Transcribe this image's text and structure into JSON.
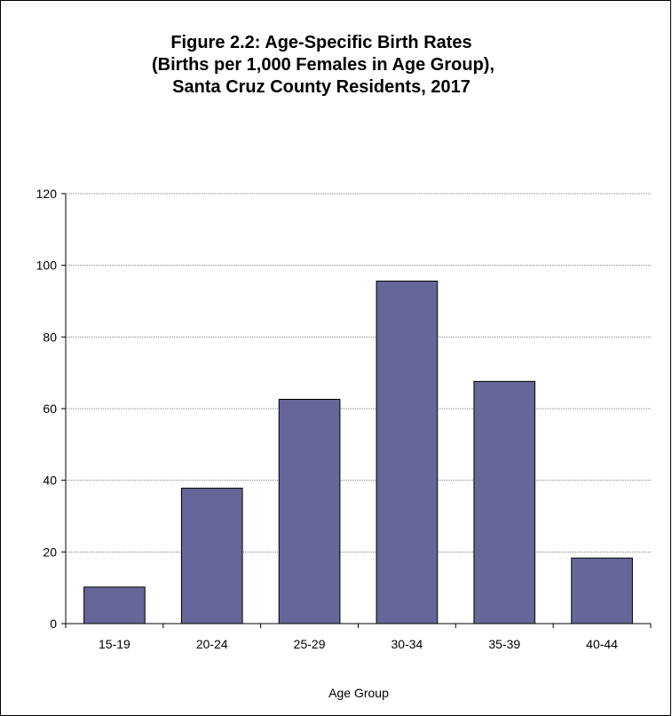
{
  "chart_data": {
    "type": "bar",
    "title_lines": [
      "Figure 2.2:  Age-Specific Birth Rates",
      "(Births per 1,000 Females in Age Group),",
      "Santa Cruz County Residents, 2017"
    ],
    "categories": [
      "15-19",
      "20-24",
      "25-29",
      "30-34",
      "35-39",
      "40-44"
    ],
    "values": [
      10.2,
      37.8,
      62.6,
      95.6,
      67.6,
      18.3
    ],
    "xlabel": "Age Group",
    "ylabel": "",
    "ylim": [
      0,
      120
    ],
    "yticks": [
      0,
      20,
      40,
      60,
      80,
      100,
      120
    ],
    "grid": true,
    "legend": "none",
    "bar_color": "#666699",
    "bar_edge_color": "#000000",
    "grid_color": "#808080"
  }
}
